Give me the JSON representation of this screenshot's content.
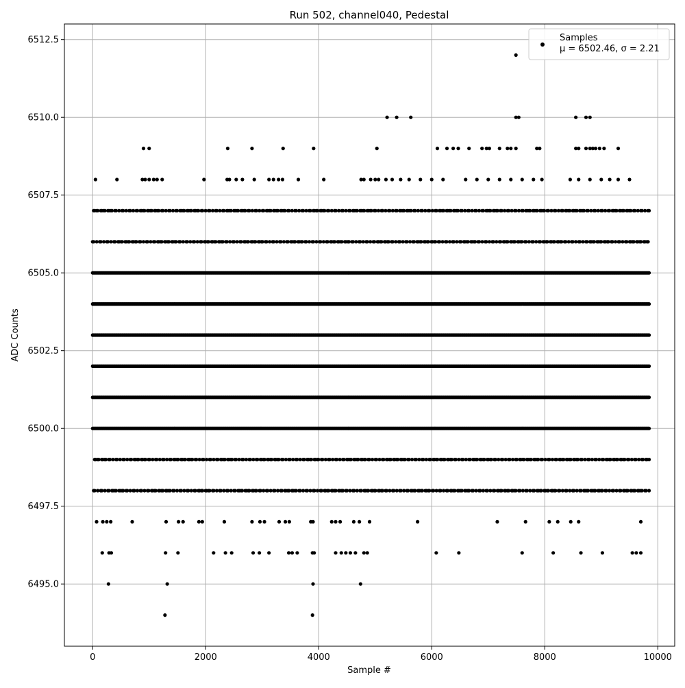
{
  "chart_data": {
    "type": "scatter",
    "title": "Run 502, channel040, Pedestal",
    "xlabel": "Sample #",
    "ylabel": "ADC Counts",
    "xlim": [
      -500,
      10300
    ],
    "ylim": [
      6493,
      6513
    ],
    "xticks": [
      0,
      2000,
      4000,
      6000,
      8000,
      10000
    ],
    "xtick_labels": [
      "0",
      "2000",
      "4000",
      "6000",
      "8000",
      "10000"
    ],
    "yticks": [
      6495.0,
      6497.5,
      6500.0,
      6502.5,
      6505.0,
      6507.5,
      6510.0,
      6512.5
    ],
    "ytick_labels": [
      "6495.0",
      "6497.5",
      "6500.0",
      "6502.5",
      "6505.0",
      "6507.5",
      "6510.0",
      "6512.5"
    ],
    "grid": true,
    "legend_position": "top-right",
    "marker_color": "#000000",
    "series": [
      {
        "name": "Samples",
        "stats_label": "μ = 6502.46, σ = 2.21",
        "n_samples": 9850,
        "x_range": [
          0,
          9850
        ],
        "level_bands": [
          {
            "y": 6500,
            "x_ranges": [
              [
                0,
                9850
              ]
            ]
          },
          {
            "y": 6501,
            "x_ranges": [
              [
                0,
                9850
              ]
            ]
          },
          {
            "y": 6502,
            "x_ranges": [
              [
                0,
                9850
              ]
            ]
          },
          {
            "y": 6503,
            "x_ranges": [
              [
                0,
                9850
              ]
            ]
          },
          {
            "y": 6504,
            "x_ranges": [
              [
                0,
                9850
              ]
            ]
          },
          {
            "y": 6505,
            "x_ranges": [
              [
                0,
                9850
              ]
            ]
          },
          {
            "y": 6506,
            "x_ranges": [
              [
                0,
                9850
              ]
            ]
          },
          {
            "y": 6507,
            "x_ranges": [
              [
                0,
                9850
              ]
            ]
          },
          {
            "y": 6499,
            "x_ranges": [
              [
                0,
                9850
              ]
            ]
          },
          {
            "y": 6498,
            "x_ranges": [
              [
                0,
                9850
              ]
            ]
          }
        ],
        "points": [
          [
            50,
            6508
          ],
          [
            430,
            6508
          ],
          [
            880,
            6508
          ],
          [
            930,
            6508
          ],
          [
            1000,
            6508
          ],
          [
            1080,
            6508
          ],
          [
            1140,
            6508
          ],
          [
            1230,
            6508
          ],
          [
            1970,
            6508
          ],
          [
            2380,
            6508
          ],
          [
            2420,
            6508
          ],
          [
            2540,
            6508
          ],
          [
            2650,
            6508
          ],
          [
            2860,
            6508
          ],
          [
            3120,
            6508
          ],
          [
            3200,
            6508
          ],
          [
            3290,
            6508
          ],
          [
            3360,
            6508
          ],
          [
            3640,
            6508
          ],
          [
            4090,
            6508
          ],
          [
            4750,
            6508
          ],
          [
            4800,
            6508
          ],
          [
            4920,
            6508
          ],
          [
            5000,
            6508
          ],
          [
            5060,
            6508
          ],
          [
            5190,
            6508
          ],
          [
            5300,
            6508
          ],
          [
            5450,
            6508
          ],
          [
            5600,
            6508
          ],
          [
            5800,
            6508
          ],
          [
            6000,
            6508
          ],
          [
            6200,
            6508
          ],
          [
            6600,
            6508
          ],
          [
            6800,
            6508
          ],
          [
            7000,
            6508
          ],
          [
            7200,
            6508
          ],
          [
            7400,
            6508
          ],
          [
            7600,
            6508
          ],
          [
            7800,
            6508
          ],
          [
            7950,
            6508
          ],
          [
            8450,
            6508
          ],
          [
            8600,
            6508
          ],
          [
            8800,
            6508
          ],
          [
            9000,
            6508
          ],
          [
            9150,
            6508
          ],
          [
            9300,
            6508
          ],
          [
            9500,
            6508
          ],
          [
            900,
            6509
          ],
          [
            1000,
            6509
          ],
          [
            2390,
            6509
          ],
          [
            2820,
            6509
          ],
          [
            3370,
            6509
          ],
          [
            3910,
            6509
          ],
          [
            5030,
            6509
          ],
          [
            6100,
            6509
          ],
          [
            6270,
            6509
          ],
          [
            6380,
            6509
          ],
          [
            6470,
            6509
          ],
          [
            6660,
            6509
          ],
          [
            6890,
            6509
          ],
          [
            6970,
            6509
          ],
          [
            7020,
            6509
          ],
          [
            7200,
            6509
          ],
          [
            7340,
            6509
          ],
          [
            7400,
            6509
          ],
          [
            7490,
            6509
          ],
          [
            7860,
            6509
          ],
          [
            7910,
            6509
          ],
          [
            8550,
            6509
          ],
          [
            8600,
            6509
          ],
          [
            8730,
            6509
          ],
          [
            8800,
            6509
          ],
          [
            8850,
            6509
          ],
          [
            8900,
            6509
          ],
          [
            8970,
            6509
          ],
          [
            9050,
            6509
          ],
          [
            9300,
            6509
          ],
          [
            5210,
            6510
          ],
          [
            5380,
            6510
          ],
          [
            5630,
            6510
          ],
          [
            7490,
            6510
          ],
          [
            7540,
            6510
          ],
          [
            8550,
            6510
          ],
          [
            8730,
            6510
          ],
          [
            8800,
            6510
          ],
          [
            7490,
            6512
          ],
          [
            70,
            6497
          ],
          [
            180,
            6497
          ],
          [
            250,
            6497
          ],
          [
            320,
            6497
          ],
          [
            700,
            6497
          ],
          [
            1300,
            6497
          ],
          [
            1520,
            6497
          ],
          [
            1600,
            6497
          ],
          [
            1880,
            6497
          ],
          [
            1940,
            6497
          ],
          [
            2330,
            6497
          ],
          [
            2820,
            6497
          ],
          [
            2960,
            6497
          ],
          [
            3040,
            6497
          ],
          [
            3300,
            6497
          ],
          [
            3410,
            6497
          ],
          [
            3480,
            6497
          ],
          [
            3860,
            6497
          ],
          [
            3900,
            6497
          ],
          [
            4230,
            6497
          ],
          [
            4300,
            6497
          ],
          [
            4380,
            6497
          ],
          [
            4620,
            6497
          ],
          [
            4720,
            6497
          ],
          [
            4900,
            6497
          ],
          [
            5750,
            6497
          ],
          [
            7160,
            6497
          ],
          [
            7660,
            6497
          ],
          [
            8080,
            6497
          ],
          [
            8230,
            6497
          ],
          [
            8460,
            6497
          ],
          [
            8600,
            6497
          ],
          [
            9700,
            6497
          ],
          [
            170,
            6496
          ],
          [
            290,
            6496
          ],
          [
            330,
            6496
          ],
          [
            1290,
            6496
          ],
          [
            1510,
            6496
          ],
          [
            2140,
            6496
          ],
          [
            2350,
            6496
          ],
          [
            2460,
            6496
          ],
          [
            2840,
            6496
          ],
          [
            2950,
            6496
          ],
          [
            3120,
            6496
          ],
          [
            3470,
            6496
          ],
          [
            3530,
            6496
          ],
          [
            3620,
            6496
          ],
          [
            3890,
            6496
          ],
          [
            3920,
            6496
          ],
          [
            4300,
            6496
          ],
          [
            4400,
            6496
          ],
          [
            4480,
            6496
          ],
          [
            4560,
            6496
          ],
          [
            4650,
            6496
          ],
          [
            4800,
            6496
          ],
          [
            4860,
            6496
          ],
          [
            6080,
            6496
          ],
          [
            6480,
            6496
          ],
          [
            7600,
            6496
          ],
          [
            8150,
            6496
          ],
          [
            8640,
            6496
          ],
          [
            9020,
            6496
          ],
          [
            9550,
            6496
          ],
          [
            9620,
            6496
          ],
          [
            9700,
            6496
          ],
          [
            280,
            6495
          ],
          [
            1320,
            6495
          ],
          [
            3900,
            6495
          ],
          [
            4740,
            6495
          ],
          [
            1280,
            6494
          ],
          [
            3890,
            6494
          ]
        ]
      }
    ]
  }
}
